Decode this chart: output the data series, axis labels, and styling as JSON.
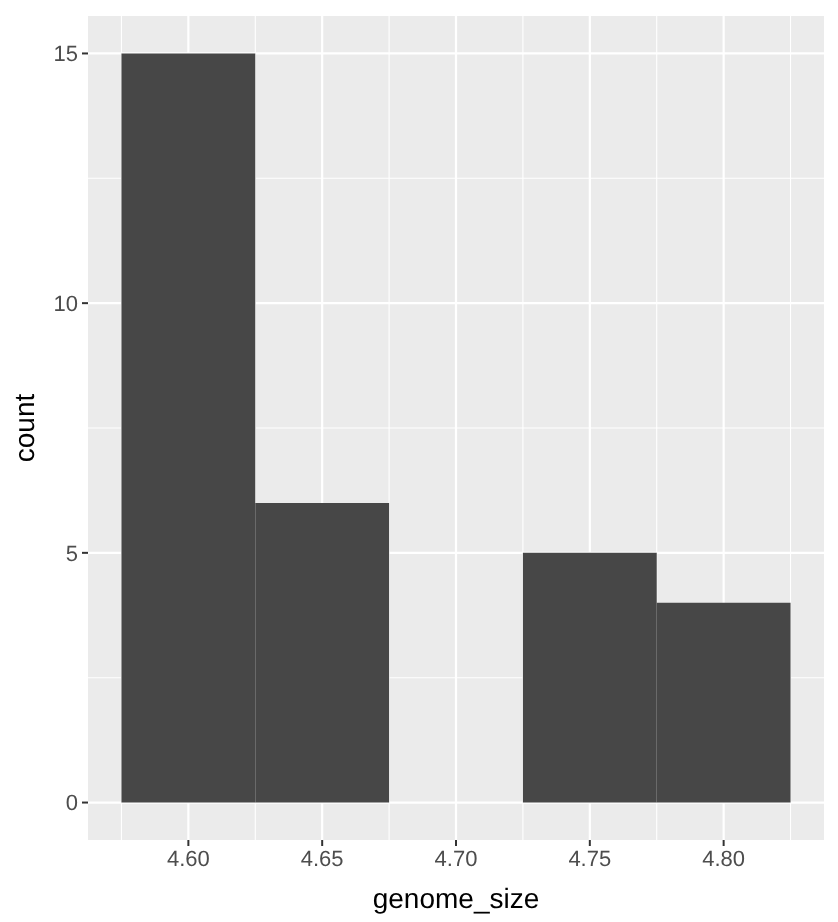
{
  "chart_data": {
    "type": "histogram",
    "xlabel": "genome_size",
    "ylabel": "count",
    "bins": [
      4.575,
      4.625,
      4.675,
      4.725,
      4.775,
      4.825
    ],
    "values": [
      15,
      6,
      0,
      5,
      4
    ],
    "color": "#474747",
    "xlim": [
      4.5625,
      4.8375
    ],
    "xticks": [
      {
        "value": 4.6,
        "label": "4.60"
      },
      {
        "value": 4.65,
        "label": "4.65"
      },
      {
        "value": 4.7,
        "label": "4.70"
      },
      {
        "value": 4.75,
        "label": "4.75"
      },
      {
        "value": 4.8,
        "label": "4.80"
      }
    ],
    "ylim": [
      -0.75,
      15.75
    ],
    "yticks": [
      0,
      5,
      10,
      15
    ],
    "grid": true
  }
}
